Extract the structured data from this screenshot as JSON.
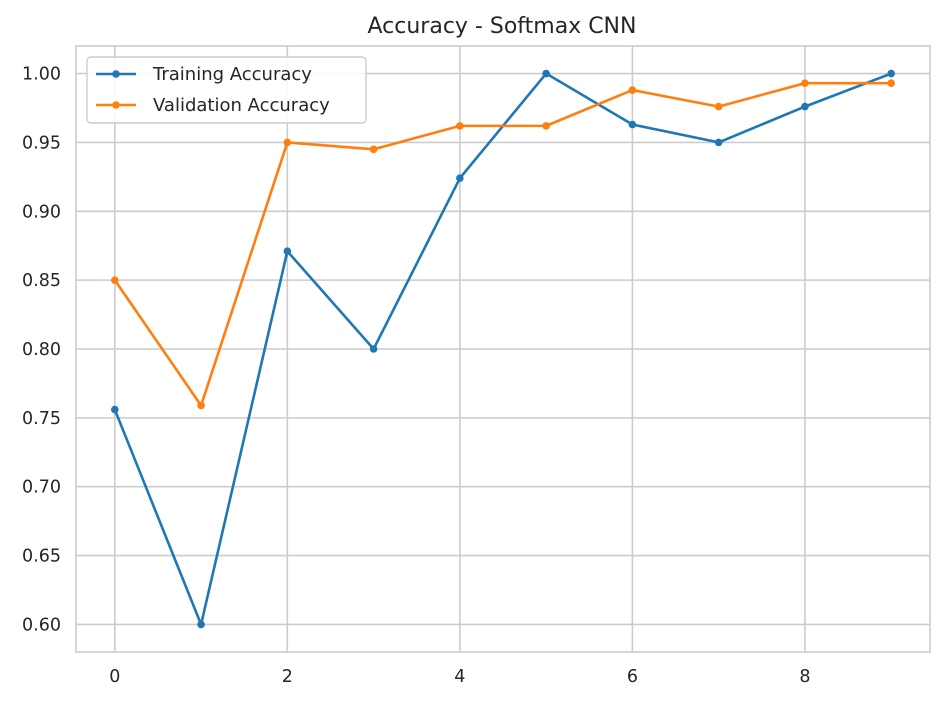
{
  "chart_data": {
    "type": "line",
    "title": "Accuracy - Softmax CNN",
    "xlabel": "",
    "ylabel": "",
    "x": [
      0,
      1,
      2,
      3,
      4,
      5,
      6,
      7,
      8,
      9
    ],
    "xlim": [
      -0.45,
      9.45
    ],
    "ylim": [
      0.58,
      1.02
    ],
    "x_ticks": [
      0,
      2,
      4,
      6,
      8
    ],
    "x_tick_labels": [
      "0",
      "2",
      "4",
      "6",
      "8"
    ],
    "y_ticks": [
      0.6,
      0.65,
      0.7,
      0.75,
      0.8,
      0.85,
      0.9,
      0.95,
      1.0
    ],
    "y_tick_labels": [
      "0.60",
      "0.65",
      "0.70",
      "0.75",
      "0.80",
      "0.85",
      "0.90",
      "0.95",
      "1.00"
    ],
    "grid": true,
    "legend_position": "top-left",
    "series": [
      {
        "name": "Training Accuracy",
        "color": "#1f77b4",
        "values": [
          0.756,
          0.6,
          0.871,
          0.8,
          0.924,
          1.0,
          0.963,
          0.95,
          0.976,
          1.0
        ]
      },
      {
        "name": "Validation Accuracy",
        "color": "#ff7f0e",
        "values": [
          0.85,
          0.759,
          0.95,
          0.945,
          0.962,
          0.962,
          0.988,
          0.976,
          0.993,
          0.993
        ]
      }
    ]
  }
}
